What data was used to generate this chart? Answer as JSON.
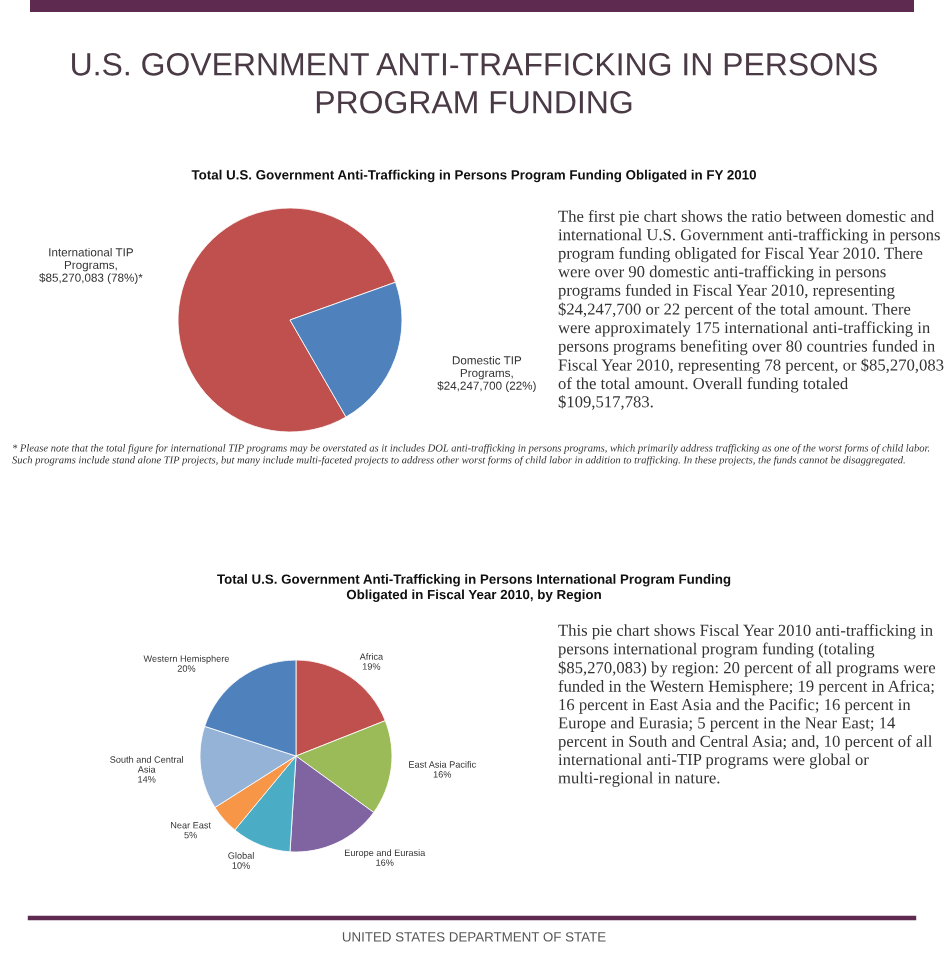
{
  "chart_data": [
    {
      "type": "pie",
      "title": "U.S. GOVERNMENT ANTI-TRAFFICKING IN PERSONS\nPROGRAM FUNDING",
      "subtitle": "Total U.S. Government Anti-Trafficking in Persons Program Funding Obligated in FY 2010",
      "values": [
        85270083,
        24247700
      ],
      "colors": [
        "#c0504d",
        "#4f81bd"
      ],
      "value_labels": [
        "International TIP Programs, $85,270,083 (78%)*",
        "Domestic TIP Programs, $24,247,700 (22%)"
      ],
      "annotations": [
        "The first pie chart shows the ratio between domestic and international U.S. Government anti-trafficking in persons program funding obligated for Fiscal Year 2010. There were over 90 domestic anti-trafficking in persons programs funded in Fiscal Year 2010, representing $24,247,700 or 22 percent of the total amount. There were approximately 175 international anti-trafficking in persons programs benefiting over 80 countries funded in Fiscal Year 2010, representing 78 percent, or $85,270,083 of the total amount. Overall funding totaled $109,517,783.",
        "* Please note that the total figure for international TIP programs may be overstated as it includes DOL anti-trafficking in persons programs, which primarily address trafficking as one of the worst forms of child labor. Such programs include stand alone TIP projects, but many include multi-faceted projects to address other worst forms of child labor in addition to trafficking. In these projects, the funds cannot be disaggregated."
      ]
    },
    {
      "type": "pie",
      "title": "Total U.S. Government Anti-Trafficking in Persons International Program Funding\nObligated in Fiscal Year 2010, by Region",
      "categories": [
        "Africa",
        "East Asia Pacific",
        "Europe and Eurasia",
        "Global",
        "Near East",
        "South and Central Asia",
        "Western Hemisphere"
      ],
      "values": [
        19,
        16,
        16,
        10,
        5,
        14,
        20
      ],
      "colors": [
        "#c0504d",
        "#9bbb59",
        "#8064a2",
        "#4bacc6",
        "#f79646",
        "#95b3d7",
        "#4f81bd"
      ],
      "value_labels": [
        "19%",
        "16%",
        "16%",
        "10%",
        "5%",
        "14%",
        "20%"
      ],
      "annotations": [
        "This pie chart shows Fiscal Year 2010 anti-trafficking in persons international program funding (totaling $85,270,083) by region: 20 percent of all programs were funded in the Western Hemisphere; 19 percent in Africa; 16 percent in East Asia and the Pacific; 16 percent in Europe and Eurasia; 5 percent in the Near East; 14 percent in South and Central Asia; and, 10 percent of all international anti-TIP programs were global or multi-regional in nature.",
        "UNITED STATES DEPARTMENT OF STATE"
      ]
    }
  ]
}
